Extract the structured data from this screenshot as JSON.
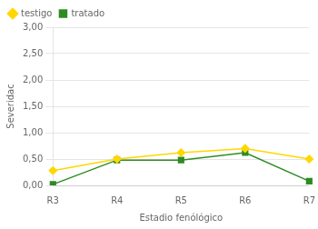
{
  "chart_data": {
    "type": "line",
    "categories": [
      "R3",
      "R4",
      "R5",
      "R6",
      "R7"
    ],
    "series": [
      {
        "name": "testigo",
        "color": "#FFD700",
        "marker": "diamond",
        "values": [
          0.28,
          0.5,
          0.62,
          0.7,
          0.5
        ]
      },
      {
        "name": "tratado",
        "color": "#2E8B22",
        "marker": "square",
        "values": [
          0.02,
          0.48,
          0.48,
          0.62,
          0.08
        ]
      }
    ],
    "xlabel": "Estadio fenólógico",
    "ylabel": "Severidac",
    "ylim": [
      0.0,
      3.0
    ],
    "yticks": [
      {
        "value": 0.0,
        "label": "0,00"
      },
      {
        "value": 0.5,
        "label": "0,50"
      },
      {
        "value": 1.0,
        "label": "1,00"
      },
      {
        "value": 1.5,
        "label": "1,50"
      },
      {
        "value": 2.0,
        "label": "2,00"
      },
      {
        "value": 2.5,
        "label": "2,50"
      },
      {
        "value": 3.0,
        "label": "3,00"
      }
    ],
    "grid": true,
    "legend": "upper left"
  }
}
